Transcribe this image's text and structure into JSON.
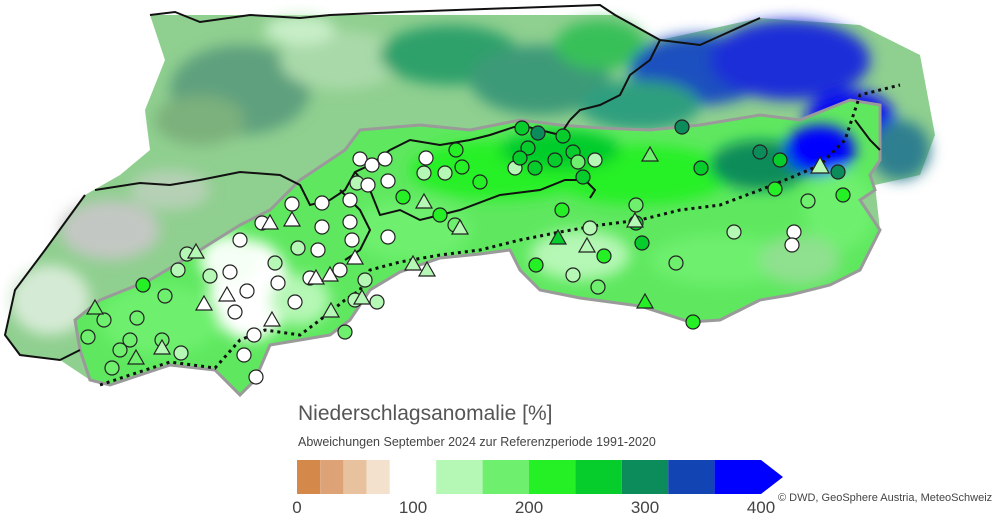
{
  "legend": {
    "title": "Niederschlagsanomalie [%]",
    "subtitle": "Abweichungen September 2024 zur Referenzperiode  1991-2020",
    "ticks": [
      "0",
      "100",
      "200",
      "300",
      "400"
    ],
    "classes": [
      {
        "from": 0,
        "to": 20,
        "color": "#d4884a"
      },
      {
        "from": 20,
        "to": 40,
        "color": "#dea277"
      },
      {
        "from": 40,
        "to": 60,
        "color": "#e8c29e"
      },
      {
        "from": 60,
        "to": 80,
        "color": "#f3e1cd"
      },
      {
        "from": 80,
        "to": 120,
        "color": "#ffffff"
      },
      {
        "from": 120,
        "to": 160,
        "color": "#b5f7b5"
      },
      {
        "from": 160,
        "to": 200,
        "color": "#6ef06e"
      },
      {
        "from": 200,
        "to": 240,
        "color": "#25f025"
      },
      {
        "from": 240,
        "to": 280,
        "color": "#06cc2c"
      },
      {
        "from": 280,
        "to": 320,
        "color": "#0c8c5a"
      },
      {
        "from": 320,
        "to": 360,
        "color": "#1344b4"
      },
      {
        "from": 360,
        "to": 400,
        "color": "#0000ff"
      }
    ],
    "overflow_color": "#0000ff"
  },
  "credit": "© DWD, GeoSphere Austria, MeteoSchweiz",
  "map": {
    "colors": {
      "outside_region": "#8fcf8f",
      "region_base": "#5fe85f",
      "border_line": "#111111",
      "alpine_outline": "#9a9a9a",
      "divide_line": "#111111"
    },
    "station_symbols": [
      "circle-icon",
      "triangle-icon"
    ]
  }
}
